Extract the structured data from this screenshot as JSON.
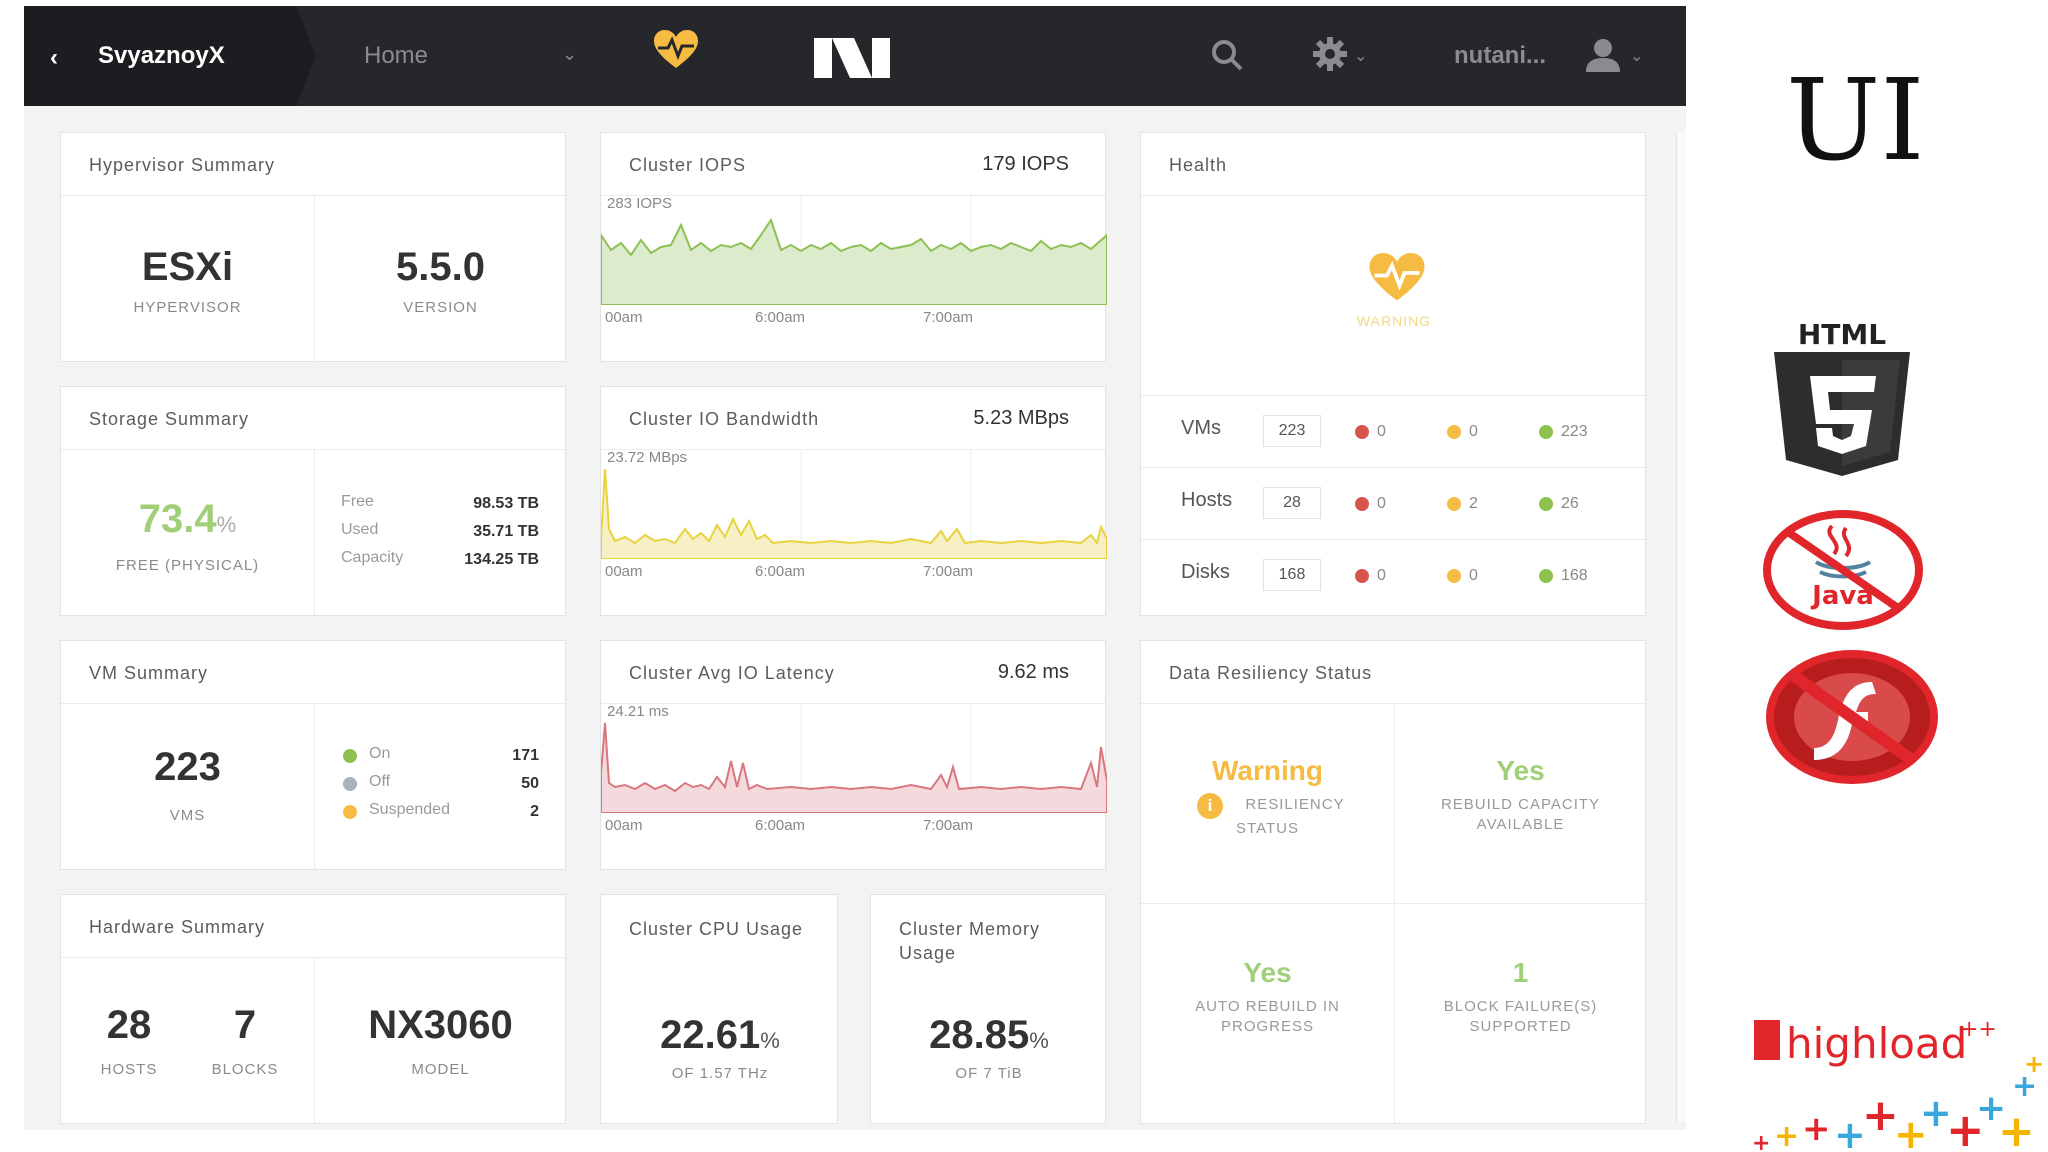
{
  "topbar": {
    "cluster_name": "SvyaznoyX",
    "home_label": "Home",
    "user_name": "nutani..."
  },
  "hypervisor": {
    "title": "Hypervisor Summary",
    "type_value": "ESXi",
    "type_label": "HYPERVISOR",
    "version_value": "5.5.0",
    "version_label": "VERSION"
  },
  "storage": {
    "title": "Storage Summary",
    "free_pct": "73.4",
    "pct_sign": "%",
    "free_label": "FREE (PHYSICAL)",
    "rows": [
      {
        "label": "Free",
        "value": "98.53 TB"
      },
      {
        "label": "Used",
        "value": "35.71 TB"
      },
      {
        "label": "Capacity",
        "value": "134.25 TB"
      }
    ]
  },
  "vm": {
    "title": "VM Summary",
    "count": "223",
    "count_label": "VMS",
    "states": [
      {
        "label": "On",
        "value": "171",
        "color": "#8cc152"
      },
      {
        "label": "Off",
        "value": "50",
        "color": "#aab2bd"
      },
      {
        "label": "Suspended",
        "value": "2",
        "color": "#f6bb42"
      }
    ]
  },
  "hardware": {
    "title": "Hardware Summary",
    "hosts_value": "28",
    "hosts_label": "HOSTS",
    "blocks_value": "7",
    "blocks_label": "BLOCKS",
    "model_value": "NX3060",
    "model_label": "MODEL"
  },
  "iops": {
    "title": "Cluster IOPS",
    "current": "179 IOPS",
    "max_label": "283 IOPS",
    "color": "#8cc152",
    "ticks": [
      "00am",
      "6:00am",
      "7:00am"
    ]
  },
  "bandwidth": {
    "title": "Cluster IO Bandwidth",
    "current": "5.23 MBps",
    "max_label": "23.72 MBps",
    "color": "#e8d33f",
    "ticks": [
      "00am",
      "6:00am",
      "7:00am"
    ]
  },
  "latency": {
    "title": "Cluster Avg IO Latency",
    "current": "9.62 ms",
    "max_label": "24.21 ms",
    "color": "#d9777f",
    "ticks": [
      "00am",
      "6:00am",
      "7:00am"
    ]
  },
  "cpu": {
    "title": "Cluster CPU Usage",
    "value": "22.61",
    "pct_sign": "%",
    "sub": "OF 1.57 THz"
  },
  "memory": {
    "title": "Cluster Memory Usage",
    "value": "28.85",
    "pct_sign": "%",
    "sub": "OF 7 TiB"
  },
  "health": {
    "title": "Health",
    "status": "WARNING",
    "rows": [
      {
        "label": "VMs",
        "total": "223",
        "critical": "0",
        "warning": "0",
        "good": "223"
      },
      {
        "label": "Hosts",
        "total": "28",
        "critical": "0",
        "warning": "2",
        "good": "26"
      },
      {
        "label": "Disks",
        "total": "168",
        "critical": "0",
        "warning": "0",
        "good": "168"
      }
    ],
    "colors": {
      "critical": "#d9534f",
      "warning": "#f6bb42",
      "good": "#8cc152"
    }
  },
  "resiliency": {
    "title": "Data Resiliency Status",
    "status_value": "Warning",
    "status_label_1": "RESILIENCY",
    "status_label_2": "STATUS",
    "rebuild_value": "Yes",
    "rebuild_label_1": "REBUILD CAPACITY",
    "rebuild_label_2": "AVAILABLE",
    "auto_value": "Yes",
    "auto_label_1": "AUTO REBUILD IN",
    "auto_label_2": "PROGRESS",
    "block_value": "1",
    "block_label_1": "BLOCK FAILURE(S)",
    "block_label_2": "SUPPORTED"
  },
  "slide": {
    "title": "UI",
    "html5_text": "HTML",
    "java_text": "Java",
    "highload_text": "highload",
    "highload_plus": "++"
  }
}
